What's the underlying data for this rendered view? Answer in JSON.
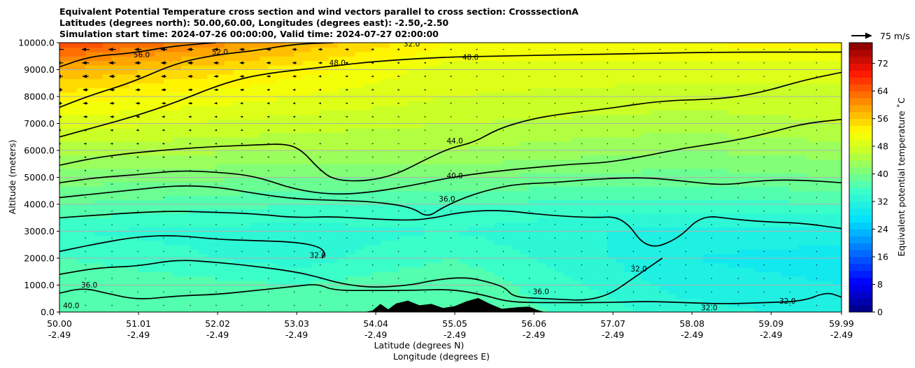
{
  "chart_data": {
    "type": "heatmap",
    "title_lines": [
      "Equivalent Potential Temperature cross section and wind vectors parallel to cross section: CrosssectionA",
      "Latitudes (degrees north): 50.00,60.00, Longitudes (degrees east): -2.50,-2.50",
      "Simulation start time: 2024-07-26 00:00:00, Valid time: 2024-07-27 02:00:00"
    ],
    "ylabel": "Altitude (meters)",
    "xlabel": "Latitude (degrees N)",
    "xlabel2": "Longitude (degrees E)",
    "ylim": [
      0,
      10000
    ],
    "yticks": [
      "0.0",
      "1000.0",
      "2000.0",
      "3000.0",
      "4000.0",
      "5000.0",
      "6000.0",
      "7000.0",
      "8000.0",
      "9000.0",
      "10000.0"
    ],
    "xticks_lat": [
      "50.00",
      "51.01",
      "52.02",
      "53.03",
      "54.04",
      "55.05",
      "56.06",
      "57.07",
      "58.08",
      "59.09",
      "59.99"
    ],
    "xticks_lon": [
      "-2.49",
      "-2.49",
      "-2.49",
      "-2.49",
      "-2.49",
      "-2.49",
      "-2.49",
      "-2.49",
      "-2.49",
      "-2.49",
      "-2.49"
    ],
    "grid": true,
    "colorbar": {
      "label": "Equivalent potential temperature ˚C",
      "range": [
        0,
        78
      ],
      "ticks": [
        "0",
        "8",
        "16",
        "24",
        "32",
        "40",
        "48",
        "56",
        "64",
        "72"
      ]
    },
    "quiver_key_label": "75 m/s",
    "contour_levels": [
      32,
      36,
      40,
      44,
      48,
      52,
      56
    ],
    "contour_labels": [
      {
        "text": "56.0",
        "lat": 51.05,
        "alt": 9550
      },
      {
        "text": "52.0",
        "lat": 52.05,
        "alt": 9650
      },
      {
        "text": "48.0",
        "lat": 53.55,
        "alt": 9250
      },
      {
        "text": "48.0",
        "lat": 55.25,
        "alt": 9450
      },
      {
        "text": "32.0",
        "lat": 54.5,
        "alt": 9950
      },
      {
        "text": "44.0",
        "lat": 55.05,
        "alt": 6350
      },
      {
        "text": "40.0",
        "lat": 55.05,
        "alt": 5050
      },
      {
        "text": "36.0",
        "lat": 54.95,
        "alt": 4200
      },
      {
        "text": "32.0",
        "lat": 53.3,
        "alt": 2100
      },
      {
        "text": "36.0",
        "lat": 50.38,
        "alt": 1000
      },
      {
        "text": "36.0",
        "lat": 56.15,
        "alt": 750
      },
      {
        "text": "32.0",
        "lat": 57.4,
        "alt": 1600
      },
      {
        "text": "32.0",
        "lat": 59.3,
        "alt": 400
      },
      {
        "text": "32.0",
        "lat": 58.3,
        "alt": 150
      },
      {
        "text": "40.0",
        "lat": 50.15,
        "alt": 230
      }
    ],
    "terrain_profile": [
      [
        53.9,
        0
      ],
      [
        54.0,
        60
      ],
      [
        54.1,
        300
      ],
      [
        54.2,
        100
      ],
      [
        54.3,
        320
      ],
      [
        54.45,
        420
      ],
      [
        54.6,
        250
      ],
      [
        54.75,
        300
      ],
      [
        54.9,
        150
      ],
      [
        55.05,
        220
      ],
      [
        55.2,
        400
      ],
      [
        55.35,
        520
      ],
      [
        55.5,
        300
      ],
      [
        55.65,
        120
      ],
      [
        55.85,
        180
      ],
      [
        56.0,
        200
      ],
      [
        56.1,
        80
      ],
      [
        56.2,
        0
      ]
    ],
    "theta_e_anchors": {
      "altitudes": [
        0,
        1000,
        2000,
        3000,
        4000,
        5000,
        6000,
        7000,
        8000,
        9000,
        10000
      ],
      "lat_50": [
        38,
        38,
        36,
        34,
        38,
        41,
        45,
        49,
        53,
        58,
        66
      ],
      "lat_53": [
        36,
        36,
        33,
        33,
        36,
        40,
        44,
        47,
        50,
        53,
        58
      ],
      "lat_55": [
        38,
        38,
        36,
        34,
        36,
        40,
        44,
        46,
        48,
        49,
        52
      ],
      "lat_58": [
        33,
        31,
        30,
        31,
        35,
        39,
        42,
        45,
        47,
        49,
        52
      ],
      "lat_60": [
        31,
        30,
        29,
        31,
        36,
        40,
        43,
        46,
        47,
        49,
        53
      ]
    },
    "contour_series": [
      {
        "level": 56,
        "points": [
          [
            50,
            9100
          ],
          [
            50.4,
            9500
          ],
          [
            50.9,
            9600
          ],
          [
            51.4,
            9850
          ],
          [
            51.8,
            9960
          ],
          [
            52.0,
            10000
          ]
        ]
      },
      {
        "level": 52,
        "points": [
          [
            50,
            7600
          ],
          [
            50.4,
            8050
          ],
          [
            50.9,
            8500
          ],
          [
            51.5,
            9250
          ],
          [
            52.0,
            9550
          ],
          [
            52.5,
            9700
          ],
          [
            53.0,
            9950
          ],
          [
            53.5,
            10000
          ]
        ]
      },
      {
        "level": 48,
        "points": [
          [
            50,
            6500
          ],
          [
            50.5,
            6900
          ],
          [
            51.0,
            7300
          ],
          [
            51.5,
            7800
          ],
          [
            52.1,
            8500
          ],
          [
            52.6,
            8850
          ],
          [
            53.4,
            9100
          ],
          [
            54.0,
            9300
          ],
          [
            54.8,
            9450
          ],
          [
            55.5,
            9500
          ],
          [
            56.5,
            9550
          ],
          [
            57.5,
            9600
          ],
          [
            58.5,
            9650
          ],
          [
            59.5,
            9650
          ],
          [
            59.99,
            9650
          ]
        ]
      },
      {
        "level": 44,
        "points": [
          [
            50,
            5450
          ],
          [
            50.4,
            5700
          ],
          [
            50.9,
            5900
          ],
          [
            51.5,
            6050
          ],
          [
            52.0,
            6150
          ],
          [
            52.5,
            6200
          ],
          [
            52.9,
            6250
          ],
          [
            53.1,
            6000
          ],
          [
            53.3,
            5350
          ],
          [
            53.5,
            4900
          ],
          [
            53.9,
            4850
          ],
          [
            54.3,
            5100
          ],
          [
            54.7,
            5700
          ],
          [
            55.0,
            6100
          ],
          [
            55.3,
            6300
          ],
          [
            55.6,
            6800
          ],
          [
            56.0,
            7150
          ],
          [
            56.4,
            7350
          ],
          [
            57.0,
            7550
          ],
          [
            57.7,
            7850
          ],
          [
            58.4,
            7900
          ],
          [
            58.9,
            8100
          ],
          [
            59.5,
            8600
          ],
          [
            59.99,
            8900
          ]
        ]
      },
      {
        "level": 40,
        "points": [
          [
            50,
            4800
          ],
          [
            50.5,
            5000
          ],
          [
            51.0,
            5100
          ],
          [
            51.5,
            5250
          ],
          [
            52.0,
            5200
          ],
          [
            52.5,
            5050
          ],
          [
            53.0,
            4550
          ],
          [
            53.5,
            4350
          ],
          [
            54.0,
            4450
          ],
          [
            54.5,
            4700
          ],
          [
            55.0,
            5000
          ],
          [
            55.5,
            5200
          ],
          [
            56.0,
            5350
          ],
          [
            56.6,
            5500
          ],
          [
            57.0,
            5550
          ],
          [
            57.5,
            5800
          ],
          [
            58.0,
            6100
          ],
          [
            58.5,
            6300
          ],
          [
            59.0,
            6600
          ],
          [
            59.5,
            7000
          ],
          [
            59.99,
            7150
          ]
        ]
      },
      {
        "level": 36,
        "points": [
          [
            50,
            4250
          ],
          [
            50.5,
            4400
          ],
          [
            51.0,
            4550
          ],
          [
            51.5,
            4700
          ],
          [
            52.0,
            4650
          ],
          [
            52.5,
            4400
          ],
          [
            53.0,
            4200
          ],
          [
            53.5,
            4150
          ],
          [
            54.0,
            4100
          ],
          [
            54.5,
            3900
          ],
          [
            54.7,
            3500
          ],
          [
            54.9,
            3900
          ],
          [
            55.3,
            4400
          ],
          [
            55.8,
            4750
          ],
          [
            56.3,
            4800
          ],
          [
            56.9,
            4950
          ],
          [
            57.5,
            5000
          ],
          [
            58.0,
            4850
          ],
          [
            58.5,
            4700
          ],
          [
            59.0,
            4900
          ],
          [
            59.5,
            4900
          ],
          [
            59.99,
            4800
          ]
        ]
      },
      {
        "level": 32,
        "points": [
          [
            50,
            3500
          ],
          [
            50.5,
            3600
          ],
          [
            51.0,
            3700
          ],
          [
            51.5,
            3750
          ],
          [
            52.0,
            3700
          ],
          [
            52.5,
            3650
          ],
          [
            53.0,
            3500
          ],
          [
            53.5,
            3550
          ],
          [
            54.0,
            3450
          ],
          [
            54.5,
            3400
          ],
          [
            54.8,
            3500
          ],
          [
            55.1,
            3700
          ],
          [
            55.6,
            3800
          ],
          [
            56.2,
            3600
          ],
          [
            56.8,
            3500
          ],
          [
            57.2,
            3550
          ],
          [
            57.5,
            2300
          ],
          [
            57.9,
            2700
          ],
          [
            58.2,
            3600
          ],
          [
            58.6,
            3450
          ],
          [
            59.0,
            3350
          ],
          [
            59.5,
            3300
          ],
          [
            59.99,
            3100
          ]
        ]
      },
      {
        "level": 32,
        "points": [
          [
            50,
            2250
          ],
          [
            50.5,
            2550
          ],
          [
            51.0,
            2800
          ],
          [
            51.5,
            2850
          ],
          [
            52.0,
            2700
          ],
          [
            52.5,
            2650
          ],
          [
            53.0,
            2600
          ],
          [
            53.3,
            2450
          ],
          [
            53.4,
            2200
          ],
          [
            53.35,
            2000
          ]
        ]
      },
      {
        "level": 36,
        "points": [
          [
            50,
            1400
          ],
          [
            50.5,
            1650
          ],
          [
            51.0,
            1700
          ],
          [
            51.5,
            1950
          ],
          [
            52.0,
            1850
          ],
          [
            52.5,
            1700
          ],
          [
            53.0,
            1500
          ],
          [
            53.3,
            1300
          ],
          [
            53.6,
            1050
          ],
          [
            54.0,
            900
          ],
          [
            54.5,
            1000
          ],
          [
            54.8,
            1200
          ],
          [
            55.2,
            1300
          ],
          [
            55.5,
            1100
          ],
          [
            55.7,
            900
          ],
          [
            55.8,
            550
          ],
          [
            56.2,
            500
          ],
          [
            56.9,
            400
          ],
          [
            57.4,
            1400
          ],
          [
            57.7,
            2000
          ]
        ]
      },
      {
        "level": 40,
        "points": [
          [
            50,
            700
          ],
          [
            50.3,
            900
          ],
          [
            50.6,
            700
          ],
          [
            51.0,
            450
          ],
          [
            51.5,
            600
          ],
          [
            52.0,
            650
          ],
          [
            52.5,
            800
          ],
          [
            53.0,
            950
          ],
          [
            53.3,
            1050
          ],
          [
            53.5,
            800
          ],
          [
            54.0,
            800
          ],
          [
            54.5,
            800
          ],
          [
            55.0,
            850
          ],
          [
            55.4,
            650
          ],
          [
            55.7,
            400
          ],
          [
            56.0,
            350
          ],
          [
            56.5,
            350
          ],
          [
            57.0,
            350
          ],
          [
            57.5,
            400
          ],
          [
            58.0,
            350
          ],
          [
            58.5,
            300
          ],
          [
            59.0,
            350
          ],
          [
            59.5,
            400
          ],
          [
            59.8,
            750
          ],
          [
            59.99,
            550
          ]
        ]
      }
    ]
  }
}
